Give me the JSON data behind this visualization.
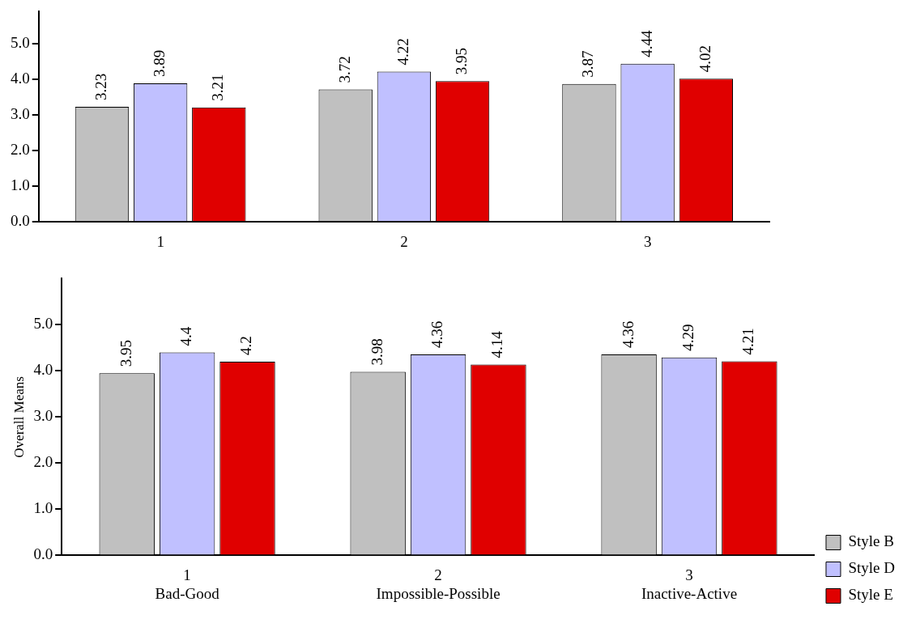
{
  "chart_data": [
    {
      "type": "bar",
      "categories": [
        "1",
        "2",
        "3"
      ],
      "series": [
        {
          "color": "#c0c0c0",
          "values": [
            3.23,
            3.72,
            3.87
          ]
        },
        {
          "color": "#c0c0ff",
          "values": [
            3.89,
            4.22,
            4.44
          ]
        },
        {
          "color": "#e00000",
          "values": [
            3.21,
            3.95,
            4.02
          ]
        }
      ],
      "ylim": [
        0,
        5.9
      ],
      "yticks": [
        {
          "value": 0,
          "label": "0.0"
        },
        {
          "value": 1,
          "label": "1.0"
        },
        {
          "value": 2,
          "label": "2.0"
        },
        {
          "value": 3,
          "label": "3.0"
        },
        {
          "value": 4,
          "label": "4.0"
        },
        {
          "value": 5,
          "label": "5.0"
        }
      ],
      "data_labels": true,
      "grid": false,
      "legend": false
    },
    {
      "type": "bar",
      "ylabel": "Overall Means",
      "categories": [
        "1\nBad-Good",
        "2\nImpossible-Possible",
        "3\nInactive-Active"
      ],
      "series": [
        {
          "name": "Style B",
          "color": "#c0c0c0",
          "values": [
            3.95,
            3.98,
            4.36
          ]
        },
        {
          "name": "Style D",
          "color": "#c0c0ff",
          "values": [
            4.4,
            4.36,
            4.29
          ]
        },
        {
          "name": "Style E",
          "color": "#e00000",
          "values": [
            4.2,
            4.14,
            4.21
          ]
        }
      ],
      "ylim": [
        0,
        6
      ],
      "yticks": [
        {
          "value": 0,
          "label": "0.0"
        },
        {
          "value": 1,
          "label": "1.0"
        },
        {
          "value": 2,
          "label": "2.0"
        },
        {
          "value": 3,
          "label": "3.0"
        },
        {
          "value": 4,
          "label": "4.0"
        },
        {
          "value": 5,
          "label": "5.0"
        }
      ],
      "data_labels": true,
      "grid": false,
      "legend": "right"
    }
  ]
}
